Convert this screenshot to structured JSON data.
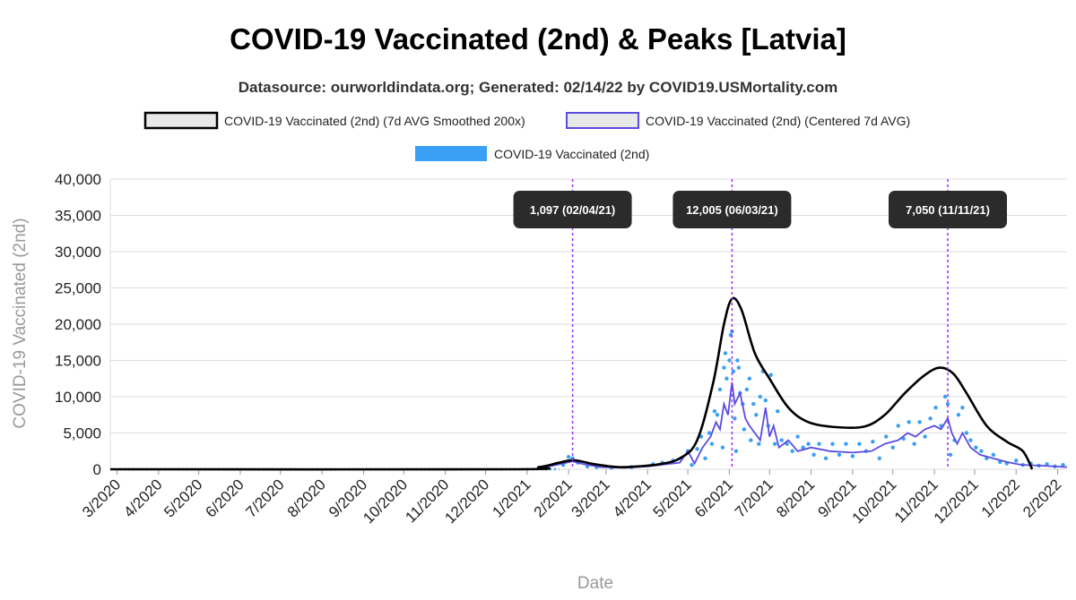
{
  "chart_data": {
    "type": "line",
    "title": "COVID-19 Vaccinated (2nd) & Peaks [Latvia]",
    "subtitle": "Datasource: ourworldindata.org; Generated: 02/14/22 by COVID19.USMortality.com",
    "xlabel": "Date",
    "ylabel": "COVID-19 Vaccinated (2nd)",
    "ylim": [
      0,
      40000
    ],
    "yticks": [
      "0",
      "5,000",
      "10,000",
      "15,000",
      "20,000",
      "25,000",
      "30,000",
      "35,000",
      "40,000"
    ],
    "ytick_values": [
      0,
      5000,
      10000,
      15000,
      20000,
      25000,
      30000,
      35000,
      40000
    ],
    "xticks": [
      "3/2020",
      "4/2020",
      "5/2020",
      "6/2020",
      "7/2020",
      "8/2020",
      "9/2020",
      "10/2020",
      "11/2020",
      "12/2020",
      "1/2021",
      "2/2021",
      "3/2021",
      "4/2021",
      "5/2021",
      "6/2021",
      "7/2021",
      "8/2021",
      "9/2021",
      "10/2021",
      "11/2021",
      "12/2021",
      "1/2022",
      "2/2022"
    ],
    "x_range": [
      "2020-02-25",
      "2022-02-08"
    ],
    "grid": true,
    "legend_position": "top",
    "series": [
      {
        "name": "COVID-19 Vaccinated (2nd) (7d AVG Smoothed 200x)",
        "color": "#000000",
        "style": "line",
        "points": [
          [
            "2020-02-25",
            0
          ],
          [
            "2020-12-20",
            0
          ],
          [
            "2021-01-10",
            300
          ],
          [
            "2021-01-25",
            900
          ],
          [
            "2021-02-05",
            1250
          ],
          [
            "2021-02-20",
            700
          ],
          [
            "2021-03-10",
            300
          ],
          [
            "2021-03-25",
            400
          ],
          [
            "2021-04-10",
            700
          ],
          [
            "2021-04-25",
            1500
          ],
          [
            "2021-05-08",
            4000
          ],
          [
            "2021-05-20",
            12000
          ],
          [
            "2021-05-28",
            20000
          ],
          [
            "2021-06-03",
            23500
          ],
          [
            "2021-06-10",
            22000
          ],
          [
            "2021-06-20",
            16000
          ],
          [
            "2021-07-01",
            12500
          ],
          [
            "2021-07-15",
            8500
          ],
          [
            "2021-07-30",
            6500
          ],
          [
            "2021-08-20",
            5800
          ],
          [
            "2021-09-10",
            5900
          ],
          [
            "2021-09-25",
            7500
          ],
          [
            "2021-10-10",
            10500
          ],
          [
            "2021-10-25",
            13000
          ],
          [
            "2021-11-05",
            14000
          ],
          [
            "2021-11-15",
            13200
          ],
          [
            "2021-11-25",
            10500
          ],
          [
            "2021-12-10",
            6000
          ],
          [
            "2021-12-25",
            3800
          ],
          [
            "2022-01-06",
            2500
          ],
          [
            "2022-01-13",
            0
          ]
        ]
      },
      {
        "name": "COVID-19 Vaccinated (2nd) (Centered 7d AVG)",
        "color": "#5b4ce0",
        "style": "line",
        "points": [
          [
            "2020-02-25",
            0
          ],
          [
            "2021-01-05",
            0
          ],
          [
            "2021-01-15",
            300
          ],
          [
            "2021-01-28",
            800
          ],
          [
            "2021-02-04",
            1097
          ],
          [
            "2021-02-12",
            700
          ],
          [
            "2021-02-25",
            300
          ],
          [
            "2021-03-15",
            200
          ],
          [
            "2021-04-01",
            400
          ],
          [
            "2021-04-15",
            700
          ],
          [
            "2021-04-25",
            900
          ],
          [
            "2021-05-01",
            2500
          ],
          [
            "2021-05-06",
            800
          ],
          [
            "2021-05-12",
            3000
          ],
          [
            "2021-05-18",
            4500
          ],
          [
            "2021-05-22",
            6500
          ],
          [
            "2021-05-25",
            5500
          ],
          [
            "2021-05-28",
            9000
          ],
          [
            "2021-05-31",
            7500
          ],
          [
            "2021-06-03",
            12005
          ],
          [
            "2021-06-05",
            9000
          ],
          [
            "2021-06-09",
            10500
          ],
          [
            "2021-06-13",
            7000
          ],
          [
            "2021-06-16",
            6000
          ],
          [
            "2021-06-20",
            5000
          ],
          [
            "2021-06-24",
            4000
          ],
          [
            "2021-06-28",
            8500
          ],
          [
            "2021-07-01",
            4500
          ],
          [
            "2021-07-04",
            6000
          ],
          [
            "2021-07-08",
            3000
          ],
          [
            "2021-07-15",
            4000
          ],
          [
            "2021-07-22",
            2500
          ],
          [
            "2021-08-01",
            3000
          ],
          [
            "2021-08-15",
            2500
          ],
          [
            "2021-09-01",
            2300
          ],
          [
            "2021-09-15",
            2500
          ],
          [
            "2021-09-25",
            3500
          ],
          [
            "2021-10-05",
            4000
          ],
          [
            "2021-10-12",
            5000
          ],
          [
            "2021-10-18",
            4500
          ],
          [
            "2021-10-25",
            5500
          ],
          [
            "2021-11-01",
            6000
          ],
          [
            "2021-11-06",
            5500
          ],
          [
            "2021-11-11",
            7050
          ],
          [
            "2021-11-14",
            5000
          ],
          [
            "2021-11-18",
            3500
          ],
          [
            "2021-11-22",
            5000
          ],
          [
            "2021-11-28",
            3000
          ],
          [
            "2021-12-05",
            2000
          ],
          [
            "2021-12-15",
            1500
          ],
          [
            "2021-12-25",
            1000
          ],
          [
            "2022-01-05",
            600
          ],
          [
            "2022-01-20",
            500
          ],
          [
            "2022-02-08",
            300
          ]
        ]
      },
      {
        "name": "COVID-19 Vaccinated (2nd)",
        "color": "#3aa0f5",
        "style": "dots",
        "points": [
          [
            "2021-01-28",
            600
          ],
          [
            "2021-02-01",
            1700
          ],
          [
            "2021-02-04",
            1500
          ],
          [
            "2021-02-08",
            900
          ],
          [
            "2021-02-15",
            400
          ],
          [
            "2021-02-22",
            300
          ],
          [
            "2021-03-05",
            200
          ],
          [
            "2021-03-20",
            300
          ],
          [
            "2021-04-05",
            700
          ],
          [
            "2021-04-12",
            900
          ],
          [
            "2021-04-20",
            1200
          ],
          [
            "2021-04-26",
            1500
          ],
          [
            "2021-05-01",
            2500
          ],
          [
            "2021-05-04",
            600
          ],
          [
            "2021-05-08",
            2800
          ],
          [
            "2021-05-11",
            4500
          ],
          [
            "2021-05-14",
            1500
          ],
          [
            "2021-05-17",
            5000
          ],
          [
            "2021-05-19",
            3500
          ],
          [
            "2021-05-21",
            8000
          ],
          [
            "2021-05-23",
            7500
          ],
          [
            "2021-05-25",
            11000
          ],
          [
            "2021-05-27",
            3000
          ],
          [
            "2021-05-28",
            14000
          ],
          [
            "2021-05-29",
            16000
          ],
          [
            "2021-05-30",
            12500
          ],
          [
            "2021-06-01",
            15000
          ],
          [
            "2021-06-02",
            18500
          ],
          [
            "2021-06-03",
            19000
          ],
          [
            "2021-06-04",
            13500
          ],
          [
            "2021-06-05",
            7000
          ],
          [
            "2021-06-06",
            2500
          ],
          [
            "2021-06-07",
            15000
          ],
          [
            "2021-06-08",
            14000
          ],
          [
            "2021-06-09",
            10500
          ],
          [
            "2021-06-11",
            9000
          ],
          [
            "2021-06-12",
            5500
          ],
          [
            "2021-06-14",
            11000
          ],
          [
            "2021-06-16",
            12500
          ],
          [
            "2021-06-17",
            4000
          ],
          [
            "2021-06-19",
            9000
          ],
          [
            "2021-06-21",
            7500
          ],
          [
            "2021-06-23",
            3500
          ],
          [
            "2021-06-24",
            10000
          ],
          [
            "2021-06-26",
            13500
          ],
          [
            "2021-06-28",
            9500
          ],
          [
            "2021-06-30",
            6000
          ],
          [
            "2021-07-02",
            13000
          ],
          [
            "2021-07-05",
            3500
          ],
          [
            "2021-07-07",
            8000
          ],
          [
            "2021-07-10",
            4000
          ],
          [
            "2021-07-14",
            3500
          ],
          [
            "2021-07-18",
            2500
          ],
          [
            "2021-07-22",
            4500
          ],
          [
            "2021-07-26",
            3000
          ],
          [
            "2021-07-30",
            3500
          ],
          [
            "2021-08-03",
            2000
          ],
          [
            "2021-08-07",
            3500
          ],
          [
            "2021-08-12",
            1500
          ],
          [
            "2021-08-17",
            3500
          ],
          [
            "2021-08-22",
            2000
          ],
          [
            "2021-08-27",
            3500
          ],
          [
            "2021-09-01",
            1800
          ],
          [
            "2021-09-06",
            3500
          ],
          [
            "2021-09-11",
            2500
          ],
          [
            "2021-09-16",
            3800
          ],
          [
            "2021-09-21",
            1500
          ],
          [
            "2021-09-26",
            4500
          ],
          [
            "2021-10-01",
            3000
          ],
          [
            "2021-10-05",
            6000
          ],
          [
            "2021-10-09",
            4200
          ],
          [
            "2021-10-13",
            6500
          ],
          [
            "2021-10-17",
            3500
          ],
          [
            "2021-10-21",
            6500
          ],
          [
            "2021-10-25",
            4500
          ],
          [
            "2021-10-29",
            7000
          ],
          [
            "2021-11-02",
            8500
          ],
          [
            "2021-11-06",
            6000
          ],
          [
            "2021-11-09",
            10000
          ],
          [
            "2021-11-11",
            9000
          ],
          [
            "2021-11-13",
            2000
          ],
          [
            "2021-11-16",
            4000
          ],
          [
            "2021-11-19",
            7500
          ],
          [
            "2021-11-22",
            8500
          ],
          [
            "2021-11-25",
            5000
          ],
          [
            "2021-11-28",
            4000
          ],
          [
            "2021-12-02",
            3000
          ],
          [
            "2021-12-06",
            2500
          ],
          [
            "2021-12-10",
            1500
          ],
          [
            "2021-12-15",
            2000
          ],
          [
            "2021-12-20",
            1000
          ],
          [
            "2021-12-25",
            800
          ],
          [
            "2022-01-01",
            1200
          ],
          [
            "2022-01-06",
            600
          ],
          [
            "2022-01-12",
            800
          ],
          [
            "2022-01-18",
            500
          ],
          [
            "2022-01-24",
            700
          ],
          [
            "2022-01-30",
            400
          ],
          [
            "2022-02-05",
            600
          ]
        ]
      }
    ],
    "peaks": [
      {
        "date": "2021-02-04",
        "label": "1,097 (02/04/21)"
      },
      {
        "date": "2021-06-03",
        "label": "12,005 (06/03/21)"
      },
      {
        "date": "2021-11-11",
        "label": "7,050 (11/11/21)"
      }
    ]
  },
  "colors": {
    "smoothed": "#000000",
    "avg": "#5b4ce0",
    "daily": "#3aa0f5",
    "peak_line": "#9b30ff",
    "peak_box": "#2b2b2b",
    "grid": "#dddddd"
  }
}
